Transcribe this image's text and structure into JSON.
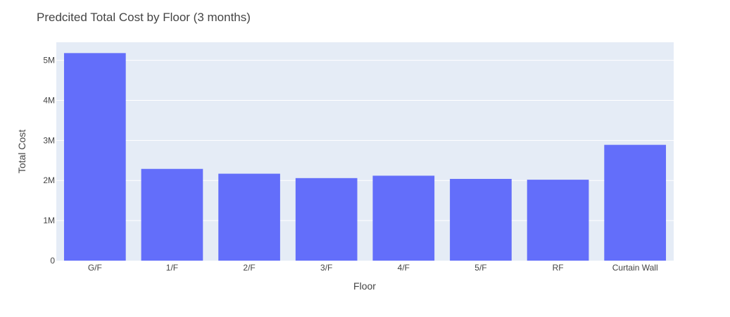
{
  "chart_data": {
    "type": "bar",
    "title": "Predcited Total Cost by Floor (3 months)",
    "xlabel": "Floor",
    "ylabel": "Total Cost",
    "categories": [
      "G/F",
      "1/F",
      "2/F",
      "3/F",
      "4/F",
      "5/F",
      "RF",
      "Curtain Wall"
    ],
    "values": [
      5180000,
      2290000,
      2170000,
      2060000,
      2120000,
      2040000,
      2020000,
      2890000
    ],
    "ylim": [
      0,
      5450000
    ],
    "yticks": [
      0,
      1000000,
      2000000,
      3000000,
      4000000,
      5000000
    ],
    "ytick_labels": [
      "0",
      "1M",
      "2M",
      "3M",
      "4M",
      "5M"
    ],
    "grid": true,
    "legend": "none",
    "colors": {
      "bar": "#636efa",
      "plot_background": "#e5ecf6",
      "gridline": "#ffffff"
    }
  }
}
